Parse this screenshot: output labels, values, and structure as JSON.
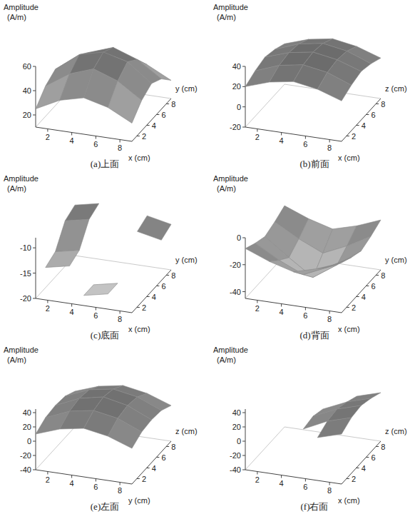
{
  "chart_data": [
    {
      "type": "surface",
      "title": "(a)上面",
      "zlabel": "Amplitude",
      "zunit": "(A/m)",
      "xlabel": "x (cm)",
      "ylabel": "y (cm)",
      "x": [
        1,
        3,
        5,
        7,
        9
      ],
      "y": [
        1,
        3,
        5,
        7,
        9
      ],
      "values": [
        [
          25,
          35,
          40,
          35,
          25
        ],
        [
          35,
          48,
          55,
          48,
          35
        ],
        [
          40,
          55,
          60,
          55,
          40
        ],
        [
          35,
          48,
          55,
          48,
          35
        ],
        [
          25,
          35,
          40,
          35,
          25
        ]
      ],
      "xlim": [
        1,
        9
      ],
      "ylim": [
        1,
        9
      ],
      "zlim": [
        10,
        60
      ],
      "xticks": [
        2,
        4,
        6,
        8
      ],
      "yticks": [
        2,
        4,
        6,
        8
      ],
      "zticks": [
        20,
        40,
        60
      ]
    },
    {
      "type": "surface",
      "title": "(b)前面",
      "zlabel": "Amplitude",
      "zunit": "(A/m)",
      "xlabel": "x (cm)",
      "ylabel": "z (cm)",
      "x": [
        1,
        3,
        5,
        7,
        9
      ],
      "y": [
        1,
        3,
        5,
        7,
        9
      ],
      "values": [
        [
          20,
          28,
          32,
          28,
          20
        ],
        [
          25,
          34,
          38,
          34,
          25
        ],
        [
          28,
          36,
          40,
          36,
          28
        ],
        [
          25,
          34,
          38,
          34,
          25
        ],
        [
          20,
          28,
          32,
          28,
          20
        ]
      ],
      "xlim": [
        1,
        9
      ],
      "ylim": [
        1,
        9
      ],
      "zlim": [
        -20,
        40
      ],
      "xticks": [
        2,
        4,
        6,
        8
      ],
      "yticks": [
        2,
        4,
        6,
        8
      ],
      "zticks": [
        -20,
        0,
        20,
        40
      ]
    },
    {
      "type": "surface",
      "title": "(c)底面",
      "zlabel": "Amplitude",
      "zunit": "(A/m)",
      "xlabel": "x (cm)",
      "ylabel": "y (cm)",
      "x": [
        1,
        3,
        5,
        7,
        9
      ],
      "y": [
        1,
        3,
        5,
        7,
        9
      ],
      "values": [
        [
          null,
          null,
          -18,
          -17,
          null
        ],
        [
          -16,
          -15,
          -18,
          -17,
          null
        ],
        [
          -15,
          -14,
          null,
          null,
          null
        ],
        [
          -11,
          -10,
          null,
          -11,
          -12
        ],
        [
          -10,
          -9,
          null,
          -10,
          -11
        ]
      ],
      "xlim": [
        1,
        9
      ],
      "ylim": [
        1,
        9
      ],
      "zlim": [
        -20,
        -8
      ],
      "xticks": [
        2,
        4,
        6,
        8
      ],
      "yticks": [
        2,
        4,
        6,
        8
      ],
      "zticks": [
        -20,
        -15,
        -10
      ]
    },
    {
      "type": "surface",
      "title": "(d)背面",
      "zlabel": "Amplitude",
      "zunit": "(A/m)",
      "xlabel": "x (cm)",
      "ylabel": "y (cm)",
      "x": [
        1,
        3,
        5,
        7,
        9
      ],
      "y": [
        1,
        3,
        5,
        7,
        9
      ],
      "values": [
        [
          -8,
          -15,
          -20,
          -15,
          -8
        ],
        [
          -12,
          -22,
          -30,
          -22,
          -12
        ],
        [
          -15,
          -28,
          -40,
          -28,
          -15
        ],
        [
          -12,
          -22,
          -30,
          -22,
          -12
        ],
        [
          -8,
          -15,
          -20,
          -15,
          -8
        ]
      ],
      "xlim": [
        1,
        9
      ],
      "ylim": [
        1,
        9
      ],
      "zlim": [
        -45,
        0
      ],
      "xticks": [
        2,
        4,
        6,
        8
      ],
      "yticks": [
        2,
        4,
        6,
        8
      ],
      "zticks": [
        -40,
        -20,
        0
      ]
    },
    {
      "type": "surface",
      "title": "(e)左面",
      "zlabel": "Amplitude",
      "zunit": "(A/m)",
      "xlabel": "y (cm)",
      "ylabel": "z (cm)",
      "x": [
        1,
        3,
        5,
        7,
        9
      ],
      "y": [
        1,
        3,
        5,
        7,
        9
      ],
      "values": [
        [
          10,
          22,
          28,
          22,
          10
        ],
        [
          18,
          32,
          38,
          32,
          18
        ],
        [
          20,
          35,
          42,
          35,
          20
        ],
        [
          18,
          32,
          38,
          32,
          18
        ],
        [
          10,
          22,
          28,
          22,
          10
        ]
      ],
      "xlim": [
        1,
        9
      ],
      "ylim": [
        1,
        9
      ],
      "zlim": [
        -40,
        45
      ],
      "xticks": [
        2,
        4,
        6,
        8
      ],
      "yticks": [
        2,
        4,
        6,
        8
      ],
      "zticks": [
        -40,
        -20,
        0,
        20,
        40
      ]
    },
    {
      "type": "surface",
      "title": "(f)右面",
      "zlabel": "Amplitude",
      "zunit": "(A/m)",
      "xlabel": "x (cm)",
      "ylabel": "z (cm)",
      "x": [
        1,
        3,
        5,
        7,
        9
      ],
      "y": [
        1,
        3,
        5,
        7,
        9
      ],
      "values": [
        [
          null,
          null,
          null,
          20,
          30
        ],
        [
          null,
          null,
          12,
          28,
          38
        ],
        [
          null,
          null,
          15,
          30,
          40
        ],
        [
          null,
          null,
          10,
          25,
          35
        ],
        [
          null,
          null,
          null,
          18,
          28
        ]
      ],
      "xlim": [
        1,
        9
      ],
      "ylim": [
        1,
        9
      ],
      "zlim": [
        -40,
        45
      ],
      "xticks": [
        2,
        4,
        6,
        8
      ],
      "yticks": [
        2,
        4,
        6,
        8
      ],
      "zticks": [
        -40,
        -20,
        0,
        20,
        40
      ]
    }
  ]
}
